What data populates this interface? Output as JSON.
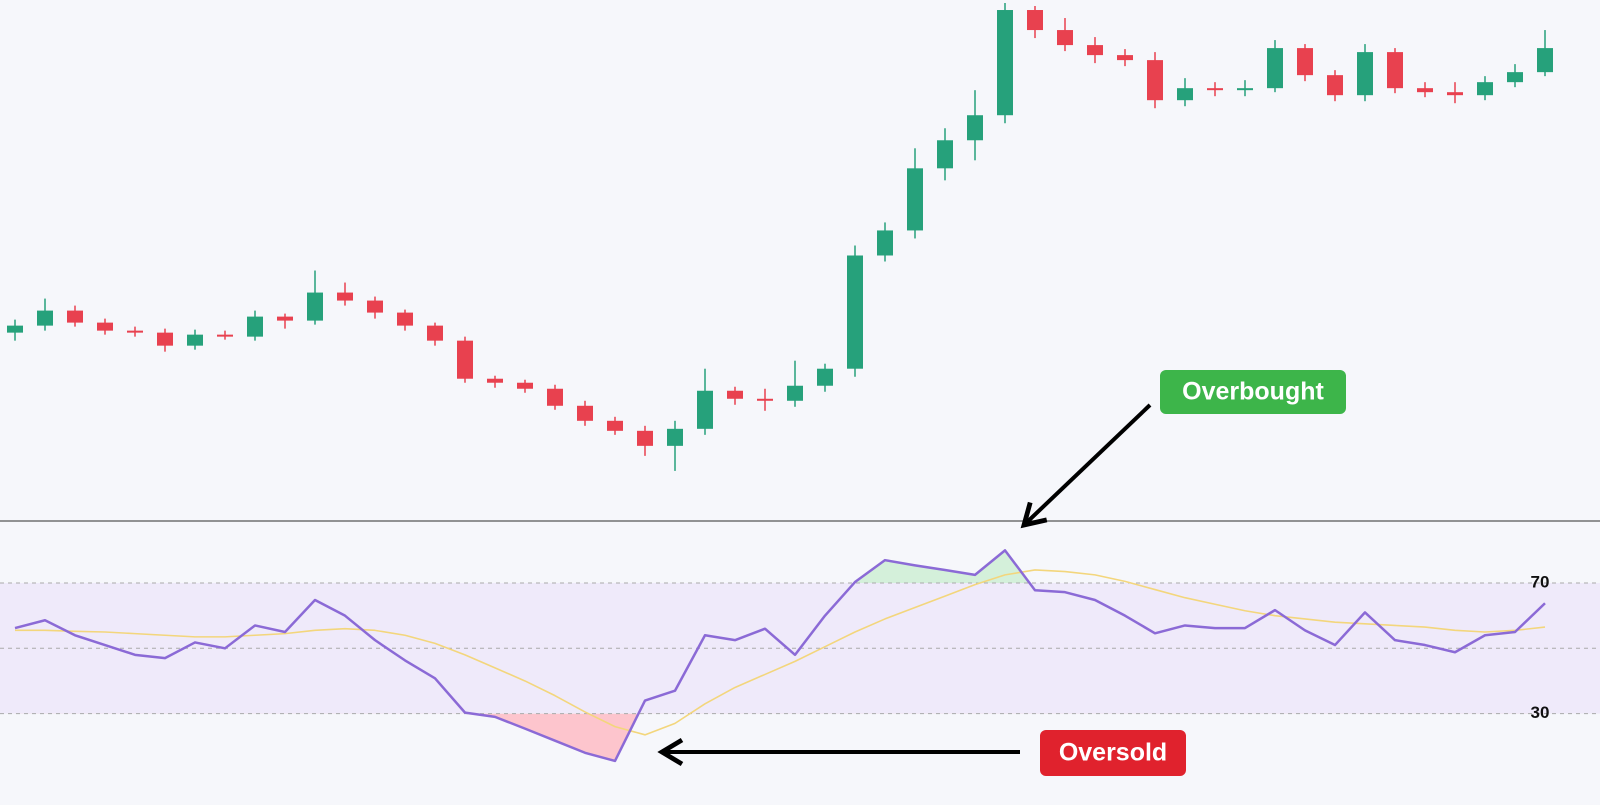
{
  "chart_data": [
    {
      "type": "candlestick",
      "ylim": [
        0,
        520
      ],
      "up_color": "#26a17b",
      "down_color": "#e8414f",
      "open": [
        188,
        195,
        210,
        198,
        190,
        188,
        175,
        186,
        184,
        204,
        200,
        228,
        220,
        208,
        195,
        180,
        142,
        138,
        132,
        115,
        100,
        90,
        75,
        92,
        130,
        122,
        120,
        135,
        152,
        265,
        290,
        352,
        380,
        405,
        510,
        490,
        475,
        465,
        460,
        420,
        432,
        430,
        432,
        472,
        445,
        425,
        468,
        432,
        428,
        425,
        438,
        448
      ],
      "high": [
        201,
        222,
        215,
        202,
        194,
        192,
        191,
        190,
        210,
        207,
        250,
        238,
        224,
        211,
        198,
        184,
        145,
        141,
        136,
        120,
        104,
        95,
        100,
        152,
        134,
        132,
        160,
        157,
        275,
        298,
        372,
        392,
        430,
        517,
        514,
        502,
        483,
        471,
        468,
        442,
        438,
        440,
        480,
        476,
        450,
        476,
        472,
        438,
        438,
        444,
        456,
        490
      ],
      "low": [
        180,
        190,
        194,
        186,
        184,
        169,
        171,
        181,
        180,
        192,
        196,
        215,
        202,
        190,
        175,
        138,
        133,
        128,
        111,
        95,
        86,
        65,
        50,
        86,
        116,
        110,
        114,
        129,
        144,
        259,
        282,
        340,
        360,
        397,
        482,
        469,
        457,
        454,
        412,
        414,
        424,
        424,
        428,
        439,
        419,
        419,
        427,
        423,
        417,
        420,
        433,
        444
      ],
      "close": [
        195,
        210,
        198,
        190,
        188,
        175,
        186,
        184,
        204,
        200,
        228,
        220,
        208,
        195,
        180,
        142,
        138,
        132,
        115,
        100,
        90,
        75,
        92,
        130,
        122,
        120,
        135,
        152,
        265,
        290,
        352,
        380,
        405,
        510,
        490,
        475,
        465,
        460,
        420,
        432,
        430,
        432,
        472,
        445,
        425,
        468,
        432,
        428,
        425,
        438,
        448,
        472
      ]
    },
    {
      "type": "line",
      "ylim": [
        2,
        89
      ],
      "yticks": [
        30,
        70
      ],
      "midline": 50,
      "band": [
        30,
        70
      ],
      "band_color": "#efeafa",
      "overbought_fill": "#d4f0da",
      "oversold_fill": "#ffb8c2",
      "series": [
        {
          "color": "#8b6ad6",
          "values": [
            56.2,
            58.6,
            54,
            51,
            48,
            47,
            51.8,
            50,
            57,
            55,
            64.8,
            60,
            52.5,
            46.3,
            40.8,
            30.3,
            29,
            25.4,
            21.7,
            18,
            15.5,
            34,
            37,
            54,
            52.5,
            56,
            48,
            60,
            70.3,
            77,
            75.4,
            74,
            72.5,
            80,
            67.8,
            67.2,
            64.8,
            60,
            54.6,
            57,
            56.2,
            56.2,
            61.7,
            55.5,
            51,
            61,
            52.5,
            51,
            48.8,
            54,
            55,
            63.8
          ]
        },
        {
          "color": "#f3d67c",
          "values": [
            55.5,
            55.5,
            55.2,
            55,
            54.5,
            54,
            53.5,
            53.5,
            54,
            54.5,
            55.5,
            56,
            55.5,
            54,
            51.5,
            48,
            44,
            40,
            35.5,
            30.5,
            26,
            23.5,
            27,
            33,
            38,
            42,
            46,
            50.5,
            55,
            59,
            62.5,
            66,
            69.5,
            72.5,
            74,
            73.5,
            72.5,
            70.5,
            68,
            65.5,
            63.5,
            61.5,
            60,
            59,
            58,
            57.5,
            57,
            56.5,
            55.5,
            55,
            55.5,
            56.5
          ]
        }
      ],
      "annotations": [
        {
          "text": "Overbought",
          "color": "#3db54a"
        },
        {
          "text": "Oversold",
          "color": "#e0222d"
        }
      ]
    }
  ]
}
